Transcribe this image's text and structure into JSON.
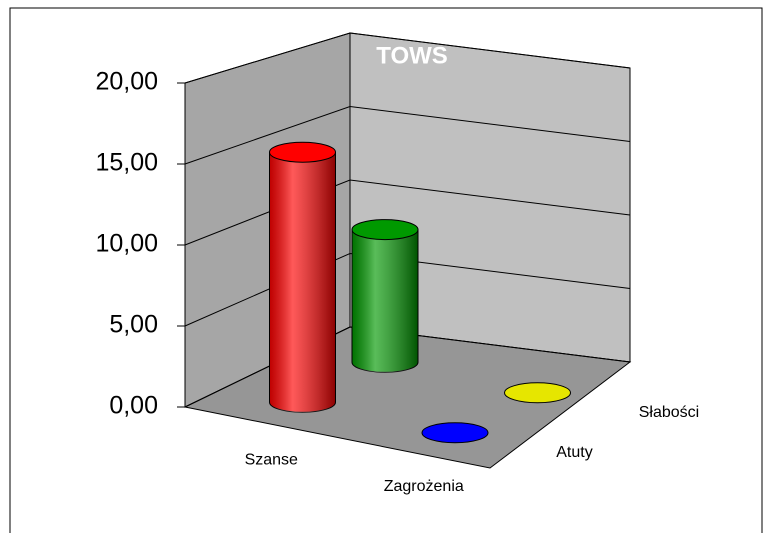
{
  "chart_data": {
    "type": "bar3d",
    "title": "TOWS",
    "categories": [
      "Szanse",
      "Zagrożenia"
    ],
    "series": [
      {
        "name": "Atuty",
        "colors": [
          "#ff0000",
          "#0000ff"
        ],
        "values": [
          15.8,
          0
        ]
      },
      {
        "name": "Słabości",
        "colors": [
          "#009900",
          "#e6e600"
        ],
        "values": [
          8.8,
          0
        ]
      }
    ],
    "ylim": [
      0,
      20
    ],
    "yticks": [
      {
        "value": 0,
        "label": "0,00"
      },
      {
        "value": 5,
        "label": "5,00"
      },
      {
        "value": 10,
        "label": "10,00"
      },
      {
        "value": 15,
        "label": "15,00"
      },
      {
        "value": 20,
        "label": "20,00"
      }
    ],
    "grid": true
  }
}
